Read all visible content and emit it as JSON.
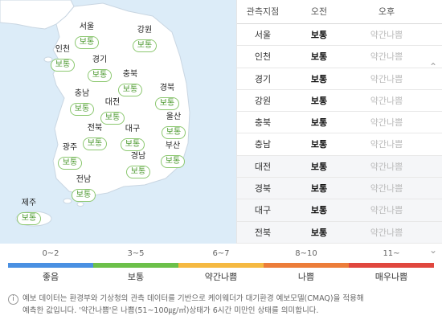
{
  "map": {
    "regions": [
      {
        "name": "서울",
        "status": "보통"
      },
      {
        "name": "강원",
        "status": "보통"
      },
      {
        "name": "인천",
        "status": "보통"
      },
      {
        "name": "경기",
        "status": "보통"
      },
      {
        "name": "충북",
        "status": "보통"
      },
      {
        "name": "충남",
        "status": "보통"
      },
      {
        "name": "대전",
        "status": "보통"
      },
      {
        "name": "경북",
        "status": "보통"
      },
      {
        "name": "전북",
        "status": "보통"
      },
      {
        "name": "대구",
        "status": "보통"
      },
      {
        "name": "울산",
        "status": "보통"
      },
      {
        "name": "광주",
        "status": "보통"
      },
      {
        "name": "경남",
        "status": "보통"
      },
      {
        "name": "부산",
        "status": "보통"
      },
      {
        "name": "전남",
        "status": "보통"
      },
      {
        "name": "제주",
        "status": "보통"
      }
    ],
    "colors": {
      "sea": "#dcecf8",
      "land": "#ffffff",
      "badge": "#4e9a32"
    }
  },
  "table": {
    "headers": [
      "관측지점",
      "오전",
      "오후"
    ],
    "rows": [
      {
        "station": "서울",
        "am": "보통",
        "pm": "약간나쁨"
      },
      {
        "station": "인천",
        "am": "보통",
        "pm": "약간나쁨"
      },
      {
        "station": "경기",
        "am": "보통",
        "pm": "약간나쁨"
      },
      {
        "station": "강원",
        "am": "보통",
        "pm": "약간나쁨"
      },
      {
        "station": "충북",
        "am": "보통",
        "pm": "약간나쁨"
      },
      {
        "station": "충남",
        "am": "보통",
        "pm": "약간나쁨"
      },
      {
        "station": "대전",
        "am": "보통",
        "pm": "약간나쁨"
      },
      {
        "station": "경북",
        "am": "보통",
        "pm": "약간나쁨"
      },
      {
        "station": "대구",
        "am": "보통",
        "pm": "약간나쁨"
      },
      {
        "station": "전북",
        "am": "보통",
        "pm": "약간나쁨"
      }
    ]
  },
  "legend": {
    "items": [
      {
        "range": "0~2",
        "label": "좋음",
        "color": "#4a90e2"
      },
      {
        "range": "3~5",
        "label": "보통",
        "color": "#6cc04a"
      },
      {
        "range": "6~7",
        "label": "약간나쁨",
        "color": "#f5b942"
      },
      {
        "range": "8~10",
        "label": "나쁨",
        "color": "#ec7d3a"
      },
      {
        "range": "11~",
        "label": "매우나쁨",
        "color": "#e0473e"
      }
    ]
  },
  "note": {
    "icon": "info-icon",
    "line1": "예보 데이터는 환경부와 기상청의 관측 데이터를 기반으로 케이웨더가 대기환경 예보모델(CMAQ)을 적용해",
    "line2": "예측한 값입니다. '약간나쁨'은 나쁨(51~100㎍/㎥)상태가 6시간 미만인 상태를 의미합니다."
  }
}
